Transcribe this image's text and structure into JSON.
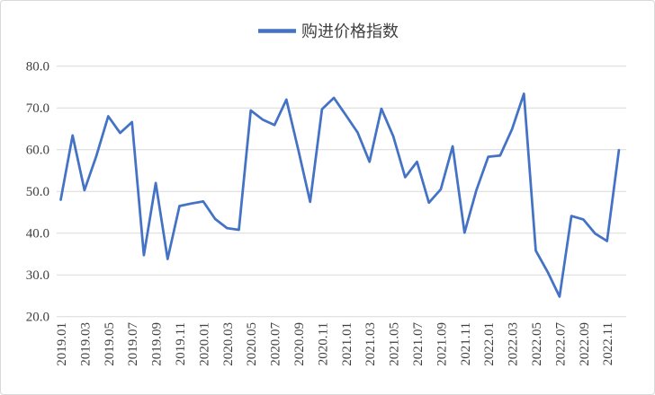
{
  "legend": {
    "label": "购进价格指数"
  },
  "colors": {
    "series": "#4472C4",
    "gridline": "#D9D9D9",
    "label": "#404040",
    "border": "#D9D9D9",
    "background": "#FFFFFF"
  },
  "chart_data": {
    "type": "line",
    "title": "",
    "series_name": "购进价格指数",
    "legend_position": "top-center",
    "grid": true,
    "ylim": [
      20,
      80
    ],
    "y_ticks": [
      20,
      30,
      40,
      50,
      60,
      70,
      80
    ],
    "y_tick_labels": [
      "20.0",
      "30.0",
      "40.0",
      "50.0",
      "60.0",
      "70.0",
      "80.0"
    ],
    "x_label_every": 2,
    "categories": [
      "2019.01",
      "2019.02",
      "2019.03",
      "2019.04",
      "2019.05",
      "2019.06",
      "2019.07",
      "2019.08",
      "2019.09",
      "2019.10",
      "2019.11",
      "2019.12",
      "2020.01",
      "2020.02",
      "2020.03",
      "2020.04",
      "2020.05",
      "2020.06",
      "2020.07",
      "2020.08",
      "2020.09",
      "2020.10",
      "2020.11",
      "2020.12",
      "2021.01",
      "2021.02",
      "2021.03",
      "2021.04",
      "2021.05",
      "2021.06",
      "2021.07",
      "2021.08",
      "2021.09",
      "2021.10",
      "2021.11",
      "2021.12",
      "2022.01",
      "2022.02",
      "2022.03",
      "2022.04",
      "2022.05",
      "2022.06",
      "2022.07",
      "2022.08",
      "2022.09",
      "2022.10",
      "2022.11",
      "2022.12"
    ],
    "values": [
      48.0,
      63.4,
      50.3,
      58.5,
      68.0,
      64.0,
      66.6,
      34.7,
      52.0,
      33.8,
      46.5,
      47.1,
      47.6,
      43.4,
      41.2,
      40.8,
      69.4,
      67.2,
      65.9,
      72.0,
      60.0,
      47.5,
      69.7,
      72.4,
      68.3,
      64.1,
      57.1,
      69.8,
      63.2,
      53.4,
      57.1,
      47.3,
      50.5,
      60.8,
      40.1,
      50.3,
      58.3,
      58.6,
      64.9,
      73.4,
      35.8,
      30.7,
      24.8,
      44.1,
      43.3,
      39.9,
      38.1,
      59.9
    ]
  }
}
